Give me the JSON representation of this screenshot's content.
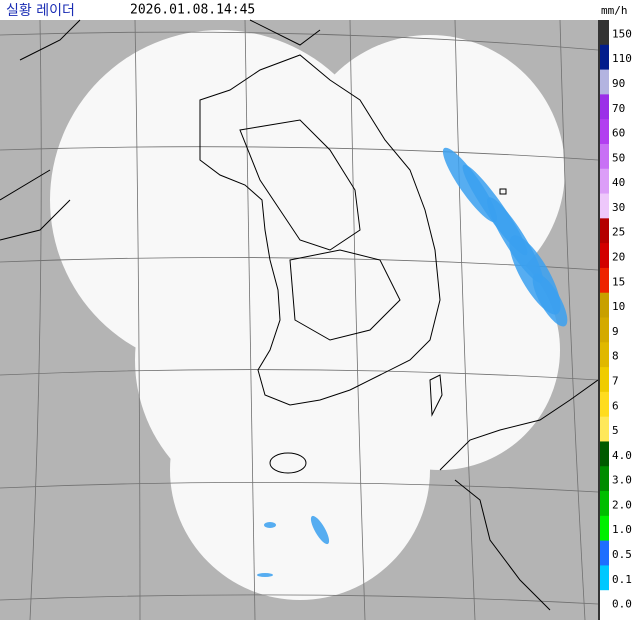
{
  "header": {
    "title": "실황 레이더",
    "timestamp": "2026.01.08.14:45"
  },
  "legend": {
    "unit": "mm/h",
    "items": [
      {
        "label": "150",
        "color": "#333333"
      },
      {
        "label": "110",
        "color": "#021d8c"
      },
      {
        "label": "90",
        "color": "#b3b4e0"
      },
      {
        "label": "70",
        "color": "#9b2fe8"
      },
      {
        "label": "60",
        "color": "#b23ff0"
      },
      {
        "label": "50",
        "color": "#c870f5"
      },
      {
        "label": "40",
        "color": "#dc9ef8"
      },
      {
        "label": "30",
        "color": "#eec8fb"
      },
      {
        "label": "25",
        "color": "#b40000"
      },
      {
        "label": "20",
        "color": "#d20000"
      },
      {
        "label": "15",
        "color": "#ee2200"
      },
      {
        "label": "10",
        "color": "#c8a000"
      },
      {
        "label": "9",
        "color": "#d4aa00"
      },
      {
        "label": "8",
        "color": "#e0b800"
      },
      {
        "label": "7",
        "color": "#f0cc00"
      },
      {
        "label": "6",
        "color": "#ffdc1e"
      },
      {
        "label": "5",
        "color": "#ffe85a"
      },
      {
        "label": "4.0",
        "color": "#005a00"
      },
      {
        "label": "3.0",
        "color": "#008c00"
      },
      {
        "label": "2.0",
        "color": "#00be00"
      },
      {
        "label": "1.0",
        "color": "#00f000"
      },
      {
        "label": "0.5",
        "color": "#1e6eff"
      },
      {
        "label": "0.1",
        "color": "#00c8ff"
      },
      {
        "label": "0.0",
        "color": "#ffffff"
      }
    ]
  }
}
